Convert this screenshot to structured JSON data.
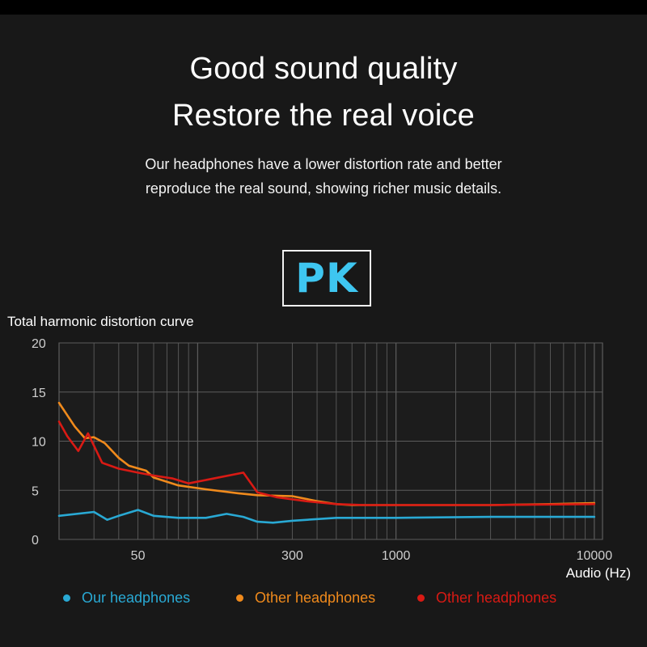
{
  "header": {
    "headline_1": "Good sound quality",
    "headline_2": "Restore the real voice",
    "description_1": "Our headphones have a lower distortion rate and better",
    "description_2": "reproduce the real sound, showing richer music details.",
    "badge": "PK"
  },
  "colors": {
    "background": "#181818",
    "accent": "#3ec6f0",
    "ours": "#29a9d4",
    "other_orange": "#f08a1c",
    "other_red": "#d91a14"
  },
  "chart_data": {
    "type": "line",
    "title": "Total harmonic distortion curve",
    "xlabel": "Audio (Hz)",
    "ylabel": "",
    "x_scale": "log",
    "x_ticks": [
      {
        "value": 50,
        "label": "50"
      },
      {
        "value": 300,
        "label": "300"
      },
      {
        "value": 1000,
        "label": "1000"
      },
      {
        "value": 10000,
        "label": "10000"
      }
    ],
    "y_ticks": [
      0,
      5,
      10,
      15,
      20
    ],
    "ylim": [
      0,
      20
    ],
    "grid": true,
    "legend_position": "bottom",
    "series": [
      {
        "name": "Our headphones",
        "color": "#29a9d4",
        "x": [
          20,
          30,
          35,
          40,
          50,
          60,
          80,
          110,
          140,
          170,
          200,
          240,
          300,
          500,
          700,
          1000,
          3000,
          6000,
          10000
        ],
        "y": [
          2.4,
          2.8,
          2.0,
          2.4,
          3.0,
          2.4,
          2.2,
          2.2,
          2.6,
          2.3,
          1.8,
          1.7,
          1.9,
          2.2,
          2.2,
          2.2,
          2.3,
          2.3,
          2.3
        ]
      },
      {
        "name": "Other headphones",
        "color": "#f08a1c",
        "x": [
          20,
          24,
          27,
          30,
          34,
          40,
          45,
          55,
          60,
          80,
          110,
          160,
          200,
          300,
          400,
          500,
          600,
          700,
          1000,
          3000,
          6000,
          10000
        ],
        "y": [
          13.9,
          11.5,
          10.3,
          10.4,
          9.8,
          8.3,
          7.5,
          7.0,
          6.3,
          5.5,
          5.1,
          4.7,
          4.5,
          4.4,
          3.9,
          3.6,
          3.5,
          3.5,
          3.5,
          3.5,
          3.6,
          3.7
        ]
      },
      {
        "name": "Other headphones",
        "color": "#d91a14",
        "x": [
          20,
          22,
          25,
          28,
          33,
          40,
          50,
          60,
          75,
          90,
          120,
          170,
          200,
          250,
          350,
          500,
          700,
          1000,
          3000,
          10000
        ],
        "y": [
          12.0,
          10.5,
          9.0,
          10.8,
          7.8,
          7.2,
          6.8,
          6.5,
          6.2,
          5.7,
          6.2,
          6.8,
          4.8,
          4.3,
          3.9,
          3.6,
          3.5,
          3.5,
          3.5,
          3.6
        ]
      }
    ]
  }
}
